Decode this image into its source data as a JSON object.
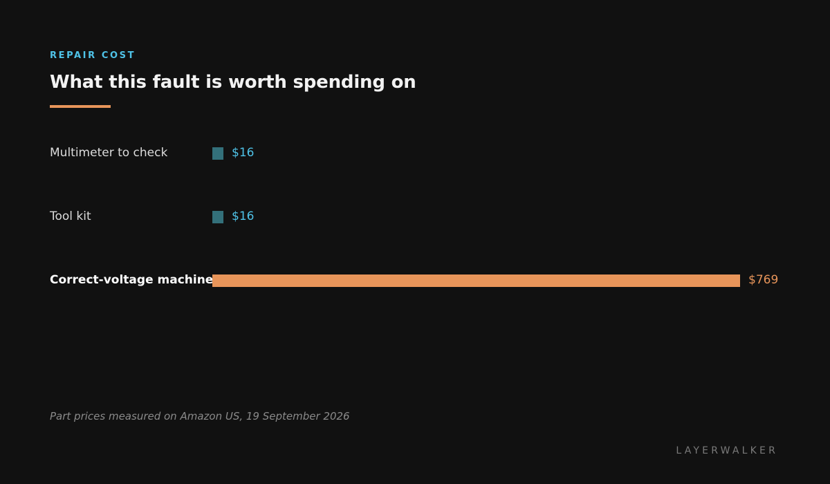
{
  "eyebrow": "REPAIR COST",
  "title": "What this fault is worth spending on",
  "footnote": "Part prices measured on Amazon US, 19 September 2026",
  "brand": "LAYERWALKER",
  "colors": {
    "background": "#111111",
    "accent": "#e8955a",
    "teal_bar": "#33707a",
    "teal_text": "#4fc3e8"
  },
  "chart_data": {
    "type": "bar",
    "orientation": "horizontal",
    "title": "What this fault is worth spending on",
    "categories": [
      "Multimeter to check",
      "Tool kit",
      "Correct-voltage machine"
    ],
    "values": [
      16,
      16,
      769
    ],
    "value_labels": [
      "$16",
      "$16",
      "$769"
    ],
    "highlight_index": 2,
    "xlim": [
      0,
      769
    ],
    "grid": false
  }
}
